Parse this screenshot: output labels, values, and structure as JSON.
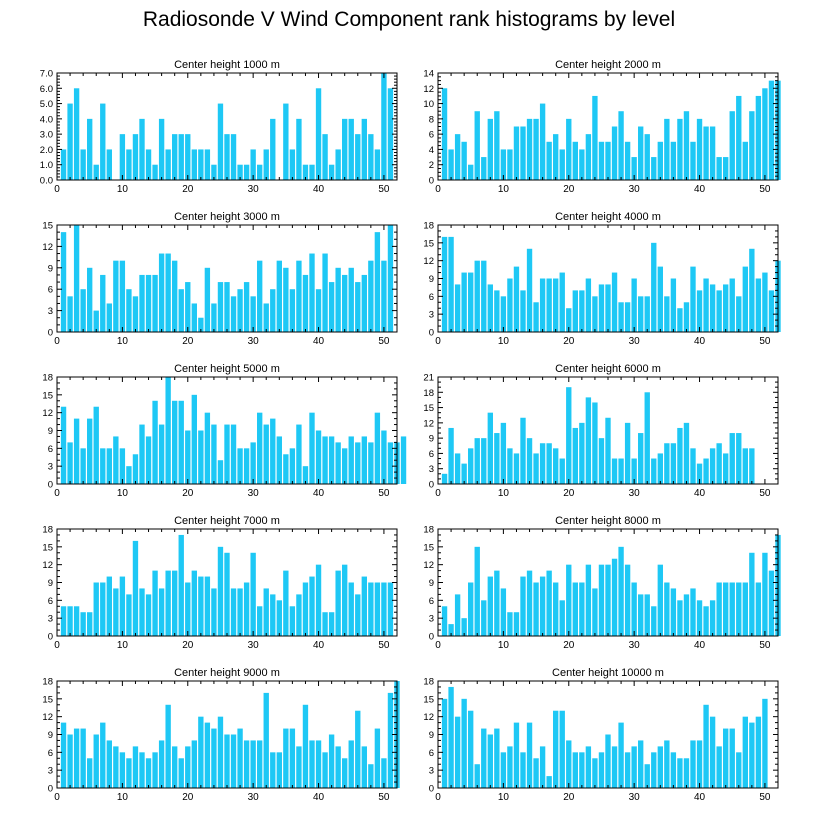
{
  "title": "Radiosonde V Wind Component rank histograms by level",
  "bar_color": "#1ec8f5",
  "x_ticks": [
    0,
    10,
    20,
    30,
    40,
    50
  ],
  "xlim": [
    0,
    52
  ],
  "chart_data": [
    {
      "type": "bar",
      "title": "Center height 1000 m",
      "ylim": [
        0,
        7
      ],
      "y_ticks": [
        0,
        1,
        2,
        3,
        4,
        5,
        6,
        7
      ],
      "y_tick_labels": [
        "0.0",
        "1.0",
        "2.0",
        "3.0",
        "4.0",
        "5.0",
        "6.0",
        "7.0"
      ],
      "values": [
        2,
        5,
        6,
        2,
        4,
        1,
        5,
        2,
        0,
        3,
        2,
        3,
        4,
        2,
        1,
        4,
        2,
        3,
        3,
        3,
        2,
        2,
        2,
        1,
        5,
        3,
        3,
        1,
        1,
        2,
        1,
        2,
        4,
        0,
        5,
        2,
        4,
        1,
        1,
        6,
        3,
        1,
        2,
        4,
        4,
        3,
        4,
        3,
        2,
        7,
        6
      ]
    },
    {
      "type": "bar",
      "title": "Center height 2000 m",
      "ylim": [
        0,
        14
      ],
      "y_ticks": [
        0,
        2,
        4,
        6,
        8,
        10,
        12,
        14
      ],
      "y_tick_labels": [
        "0",
        "2",
        "4",
        "6",
        "8",
        "10",
        "12",
        "14"
      ],
      "values": [
        12,
        4,
        6,
        5,
        2,
        9,
        3,
        8,
        9,
        4,
        4,
        7,
        7,
        8,
        8,
        10,
        5,
        6,
        4,
        8,
        5,
        4,
        6,
        11,
        5,
        5,
        7,
        9,
        5,
        3,
        7,
        6,
        3,
        5,
        8,
        5,
        8,
        9,
        5,
        8,
        7,
        7,
        3,
        3,
        9,
        11,
        5,
        9,
        11,
        12,
        13,
        13
      ]
    },
    {
      "type": "bar",
      "title": "Center height 3000 m",
      "ylim": [
        0,
        15
      ],
      "y_ticks": [
        0,
        3,
        6,
        9,
        12,
        15
      ],
      "y_tick_labels": [
        "0",
        "3",
        "6",
        "9",
        "12",
        "15"
      ],
      "values": [
        14,
        5,
        15,
        6,
        9,
        3,
        8,
        4,
        10,
        10,
        6,
        5,
        8,
        8,
        8,
        11,
        11,
        10,
        6,
        7,
        4,
        2,
        9,
        4,
        7,
        7,
        5,
        6,
        7,
        5,
        10,
        4,
        6,
        10,
        9,
        6,
        10,
        8,
        11,
        6,
        11,
        7,
        9,
        8,
        9,
        7,
        8,
        10,
        14,
        10,
        15
      ]
    },
    {
      "type": "bar",
      "title": "Center height 4000 m",
      "ylim": [
        0,
        18
      ],
      "y_ticks": [
        0,
        3,
        6,
        9,
        12,
        15,
        18
      ],
      "y_tick_labels": [
        "0",
        "3",
        "6",
        "9",
        "12",
        "15",
        "18"
      ],
      "values": [
        16,
        16,
        8,
        10,
        10,
        12,
        12,
        8,
        7,
        6,
        9,
        11,
        7,
        14,
        5,
        9,
        9,
        9,
        10,
        4,
        7,
        7,
        9,
        6,
        8,
        8,
        10,
        5,
        5,
        9,
        6,
        6,
        15,
        11,
        6,
        9,
        4,
        5,
        11,
        7,
        9,
        8,
        7,
        8,
        9,
        6,
        11,
        14,
        9,
        10,
        7,
        12
      ]
    },
    {
      "type": "bar",
      "title": "Center height 5000 m",
      "ylim": [
        0,
        18
      ],
      "y_ticks": [
        0,
        3,
        6,
        9,
        12,
        15,
        18
      ],
      "y_tick_labels": [
        "0",
        "3",
        "6",
        "9",
        "12",
        "15",
        "18"
      ],
      "values": [
        13,
        7,
        11,
        6,
        11,
        13,
        6,
        6,
        8,
        6,
        3,
        5,
        10,
        8,
        14,
        10,
        18,
        14,
        14,
        9,
        15,
        9,
        12,
        10,
        4,
        10,
        10,
        6,
        6,
        7,
        12,
        10,
        11,
        8,
        5,
        6,
        10,
        3,
        12,
        9,
        8,
        8,
        7,
        6,
        8,
        7,
        8,
        7,
        12,
        9,
        7,
        7,
        8
      ]
    },
    {
      "type": "bar",
      "title": "Center height 6000 m",
      "ylim": [
        0,
        21
      ],
      "y_ticks": [
        0,
        3,
        6,
        9,
        12,
        15,
        18,
        21
      ],
      "y_tick_labels": [
        "0",
        "3",
        "6",
        "9",
        "12",
        "15",
        "18",
        "21"
      ],
      "values": [
        2,
        11,
        6,
        4,
        7,
        9,
        9,
        14,
        10,
        12,
        7,
        6,
        13,
        9,
        6,
        8,
        8,
        7,
        5,
        19,
        11,
        12,
        17,
        16,
        9,
        13,
        5,
        5,
        12,
        5,
        10,
        18,
        5,
        6,
        8,
        8,
        11,
        12,
        7,
        4,
        5,
        7,
        8,
        6,
        10,
        10,
        7,
        7
      ]
    },
    {
      "type": "bar",
      "title": "Center height 7000 m",
      "ylim": [
        0,
        18
      ],
      "y_ticks": [
        0,
        3,
        6,
        9,
        12,
        15,
        18
      ],
      "y_tick_labels": [
        "0",
        "3",
        "6",
        "9",
        "12",
        "15",
        "18"
      ],
      "values": [
        5,
        5,
        5,
        4,
        4,
        9,
        9,
        10,
        8,
        10,
        7,
        16,
        8,
        7,
        11,
        8,
        11,
        11,
        17,
        9,
        11,
        10,
        10,
        8,
        15,
        14,
        8,
        8,
        9,
        14,
        5,
        8,
        7,
        6,
        11,
        5,
        7,
        9,
        10,
        12,
        4,
        4,
        11,
        12,
        9,
        7,
        10,
        9,
        9,
        9,
        9
      ]
    },
    {
      "type": "bar",
      "title": "Center height 8000 m",
      "ylim": [
        0,
        18
      ],
      "y_ticks": [
        0,
        3,
        6,
        9,
        12,
        15,
        18
      ],
      "y_tick_labels": [
        "0",
        "3",
        "6",
        "9",
        "12",
        "15",
        "18"
      ],
      "values": [
        5,
        2,
        7,
        3,
        9,
        15,
        6,
        10,
        11,
        8,
        4,
        4,
        10,
        11,
        9,
        10,
        11,
        9,
        6,
        12,
        9,
        9,
        12,
        8,
        12,
        12,
        13,
        15,
        12,
        9,
        7,
        7,
        5,
        12,
        9,
        8,
        6,
        7,
        8,
        6,
        5,
        6,
        9,
        9,
        9,
        9,
        9,
        14,
        9,
        14,
        11,
        17
      ]
    },
    {
      "type": "bar",
      "title": "Center height 9000 m",
      "ylim": [
        0,
        18
      ],
      "y_ticks": [
        0,
        3,
        6,
        9,
        12,
        15,
        18
      ],
      "y_tick_labels": [
        "0",
        "3",
        "6",
        "9",
        "12",
        "15",
        "18"
      ],
      "values": [
        11,
        9,
        10,
        10,
        5,
        9,
        11,
        8,
        7,
        6,
        5,
        7,
        6,
        5,
        6,
        8,
        14,
        7,
        5,
        7,
        8,
        12,
        11,
        10,
        12,
        9,
        9,
        10,
        8,
        8,
        8,
        16,
        6,
        6,
        10,
        10,
        7,
        14,
        8,
        8,
        6,
        9,
        7,
        5,
        8,
        13,
        7,
        4,
        10,
        5,
        16,
        18
      ]
    },
    {
      "type": "bar",
      "title": "Center height 10000 m",
      "ylim": [
        0,
        18
      ],
      "y_ticks": [
        0,
        3,
        6,
        9,
        12,
        15,
        18
      ],
      "y_tick_labels": [
        "0",
        "3",
        "6",
        "9",
        "12",
        "15",
        "18"
      ],
      "values": [
        15,
        17,
        12,
        15,
        13,
        4,
        10,
        9,
        10,
        6,
        7,
        11,
        6,
        11,
        5,
        7,
        2,
        13,
        13,
        8,
        6,
        6,
        7,
        5,
        6,
        9,
        7,
        11,
        6,
        7,
        8,
        4,
        6,
        7,
        8,
        6,
        5,
        5,
        8,
        8,
        14,
        12,
        7,
        10,
        10,
        6,
        12,
        11,
        12,
        15
      ]
    }
  ]
}
